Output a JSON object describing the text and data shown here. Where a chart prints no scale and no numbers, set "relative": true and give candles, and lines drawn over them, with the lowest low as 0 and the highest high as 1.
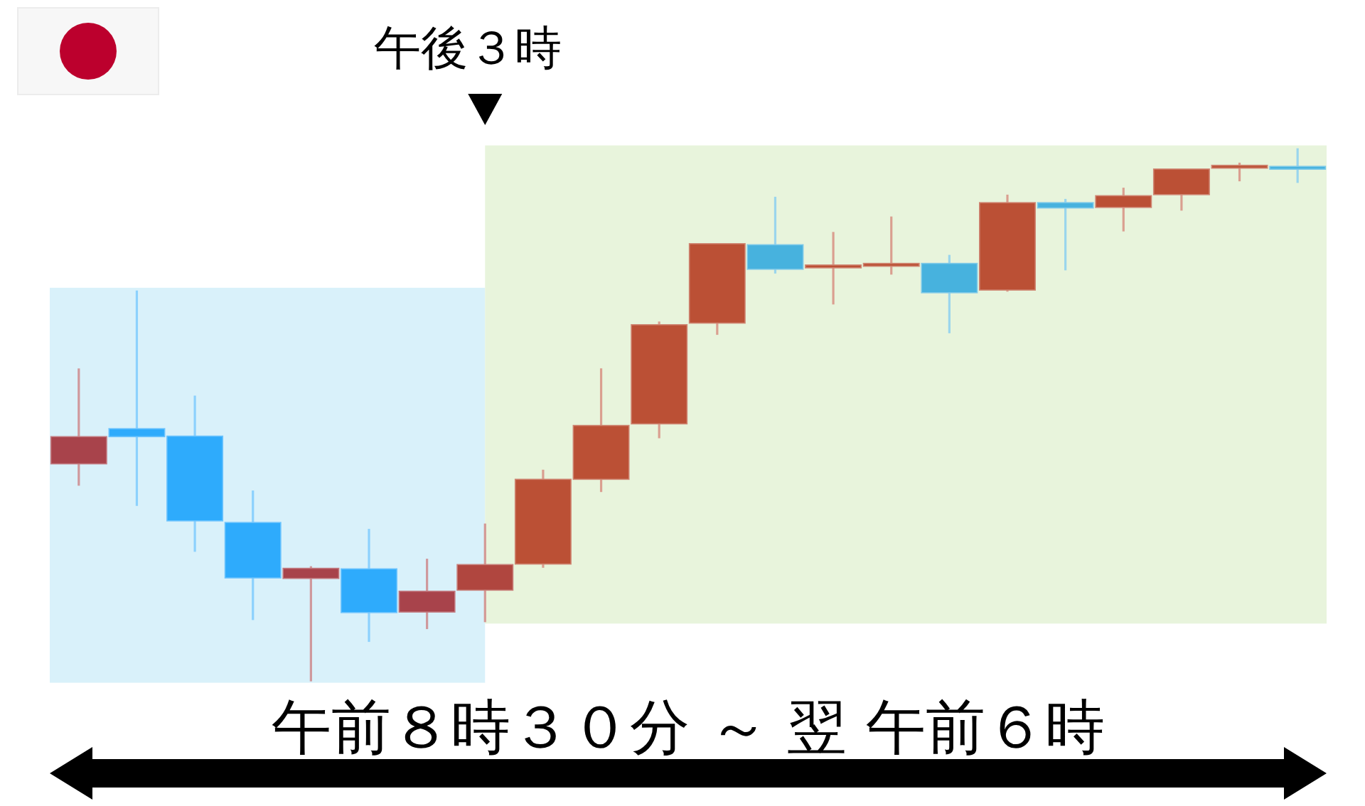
{
  "chart_data": {
    "type": "candlestick",
    "relative": true,
    "categories": [
      null,
      null,
      null,
      null,
      null,
      null,
      null,
      null,
      null,
      null,
      null,
      null,
      null,
      null,
      null,
      null,
      null,
      null,
      null,
      null,
      null,
      null
    ],
    "ohlc": [
      [
        0.408,
        0.587,
        0.367,
        0.459
      ],
      [
        0.474,
        0.733,
        0.329,
        0.459
      ],
      [
        0.46,
        0.536,
        0.243,
        0.301
      ],
      [
        0.298,
        0.358,
        0.115,
        0.194
      ],
      [
        0.193,
        0.216,
        0,
        0.212
      ],
      [
        0.211,
        0.286,
        0.074,
        0.129
      ],
      [
        0.13,
        0.23,
        0.098,
        0.169
      ],
      [
        0.171,
        0.296,
        0.111,
        0.219
      ],
      [
        0.22,
        0.397,
        0.213,
        0.379
      ],
      [
        0.379,
        0.587,
        0.355,
        0.48
      ],
      [
        0.483,
        0.675,
        0.456,
        0.669
      ],
      [
        0.672,
        0.821,
        0.65,
        0.821
      ],
      [
        0.819,
        0.909,
        0.765,
        0.773
      ],
      [
        0.778,
        0.843,
        0.707,
        0.781
      ],
      [
        0.781,
        0.872,
        0.763,
        0.784
      ],
      [
        0.784,
        0.8,
        0.653,
        0.729
      ],
      [
        0.734,
        0.913,
        0.731,
        0.898
      ],
      [
        0.898,
        0.905,
        0.771,
        0.888
      ],
      [
        0.889,
        0.926,
        0.844,
        0.911
      ],
      [
        0.913,
        0.961,
        0.883,
        0.961
      ],
      [
        0.963,
        0.973,
        0.938,
        0.968
      ],
      [
        0.966,
        1,
        0.935,
        0.962
      ]
    ],
    "colors": [
      "#a8434b",
      "#2eabfc",
      "#2eabfc",
      "#2eabfc",
      "#a8434b",
      "#2eabfc",
      "#a8434b",
      "#b0463f",
      "#bb5035",
      "#bb5035",
      "#bb5035",
      "#bb5035",
      "#47b2de",
      "#bb5035",
      "#bb5035",
      "#47b2de",
      "#bb5035",
      "#47b2de",
      "#bb5035",
      "#bb5035",
      "#bb5035",
      "#47b2de"
    ],
    "annotations": [
      "午後３時",
      "午前８時３０分 ～ 翌 午前６時"
    ]
  }
}
